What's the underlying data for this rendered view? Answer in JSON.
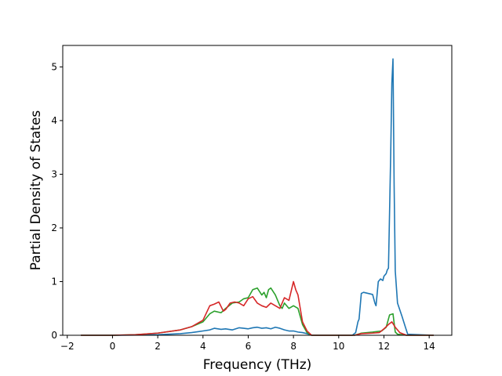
{
  "chart_data": {
    "type": "line",
    "title": "",
    "xlabel": "Frequency (THz)",
    "ylabel": "Partial Density of States",
    "xlim": [
      -2.2,
      15.0
    ],
    "ylim": [
      0,
      5.4
    ],
    "xticks": [
      -2,
      0,
      2,
      4,
      6,
      8,
      10,
      12,
      14
    ],
    "yticks": [
      0,
      1,
      2,
      3,
      4,
      5
    ],
    "grid": false,
    "legend": "none",
    "series": [
      {
        "color": "#1f77b4",
        "x": [
          -1.4,
          0,
          1,
          2,
          3,
          3.5,
          4,
          4.3,
          4.5,
          4.8,
          5,
          5.3,
          5.6,
          5.8,
          6.0,
          6.2,
          6.4,
          6.6,
          6.8,
          7.0,
          7.2,
          7.4,
          7.6,
          7.8,
          8.0,
          8.2,
          8.4,
          8.6,
          8.8,
          9.0,
          10.0,
          10.6,
          10.75,
          10.85,
          10.9,
          11.0,
          11.1,
          11.3,
          11.5,
          11.6,
          11.65,
          11.75,
          11.85,
          11.95,
          12.0,
          12.1,
          12.15,
          12.2,
          12.3,
          12.35,
          12.4,
          12.45,
          12.5,
          12.6,
          12.8,
          12.95,
          13.05,
          14.2
        ],
        "y": [
          0,
          0,
          0.005,
          0.01,
          0.03,
          0.05,
          0.08,
          0.1,
          0.13,
          0.11,
          0.12,
          0.1,
          0.14,
          0.13,
          0.12,
          0.14,
          0.15,
          0.13,
          0.14,
          0.12,
          0.15,
          0.13,
          0.1,
          0.08,
          0.08,
          0.06,
          0.05,
          0.03,
          0.0,
          0.0,
          0.0,
          0.0,
          0.05,
          0.25,
          0.3,
          0.78,
          0.8,
          0.78,
          0.76,
          0.6,
          0.55,
          1.0,
          1.05,
          1.02,
          1.1,
          1.15,
          1.22,
          1.25,
          3.4,
          4.7,
          5.15,
          2.8,
          1.2,
          0.6,
          0.35,
          0.15,
          0.02,
          0
        ]
      },
      {
        "color": "#2ca02c",
        "x": [
          -1.4,
          0,
          1,
          2,
          3,
          3.5,
          4,
          4.3,
          4.5,
          4.8,
          5,
          5.3,
          5.6,
          5.8,
          6.0,
          6.2,
          6.4,
          6.6,
          6.7,
          6.8,
          6.9,
          7.0,
          7.2,
          7.4,
          7.5,
          7.6,
          7.8,
          8.0,
          8.2,
          8.4,
          8.6,
          8.8,
          9.0,
          10.0,
          10.7,
          11.0,
          11.5,
          11.9,
          12.1,
          12.25,
          12.4,
          12.5,
          12.6,
          13.0,
          14.2
        ],
        "y": [
          0,
          0,
          0.01,
          0.04,
          0.1,
          0.16,
          0.25,
          0.4,
          0.45,
          0.42,
          0.5,
          0.6,
          0.62,
          0.68,
          0.7,
          0.85,
          0.88,
          0.75,
          0.8,
          0.7,
          0.85,
          0.88,
          0.75,
          0.55,
          0.5,
          0.6,
          0.5,
          0.55,
          0.5,
          0.2,
          0.05,
          0,
          0,
          0,
          0,
          0.04,
          0.06,
          0.08,
          0.15,
          0.38,
          0.4,
          0.06,
          0.02,
          0,
          0
        ]
      },
      {
        "color": "#d62728",
        "x": [
          -1.4,
          0,
          1,
          2,
          3,
          3.5,
          4,
          4.3,
          4.5,
          4.7,
          4.9,
          5,
          5.2,
          5.4,
          5.6,
          5.8,
          6.0,
          6.2,
          6.4,
          6.6,
          6.8,
          7.0,
          7.2,
          7.4,
          7.6,
          7.8,
          8.0,
          8.1,
          8.2,
          8.4,
          8.6,
          8.8,
          9.0,
          10.0,
          10.7,
          11.0,
          11.5,
          11.8,
          12.0,
          12.2,
          12.35,
          12.5,
          12.7,
          13.0,
          14.2
        ],
        "y": [
          0,
          0,
          0.01,
          0.04,
          0.1,
          0.16,
          0.28,
          0.55,
          0.58,
          0.62,
          0.45,
          0.48,
          0.6,
          0.62,
          0.6,
          0.55,
          0.68,
          0.72,
          0.6,
          0.55,
          0.52,
          0.6,
          0.55,
          0.5,
          0.7,
          0.65,
          1.0,
          0.85,
          0.75,
          0.25,
          0.08,
          0,
          0,
          0,
          0,
          0.03,
          0.04,
          0.05,
          0.12,
          0.2,
          0.25,
          0.15,
          0.05,
          0,
          0
        ]
      }
    ]
  }
}
